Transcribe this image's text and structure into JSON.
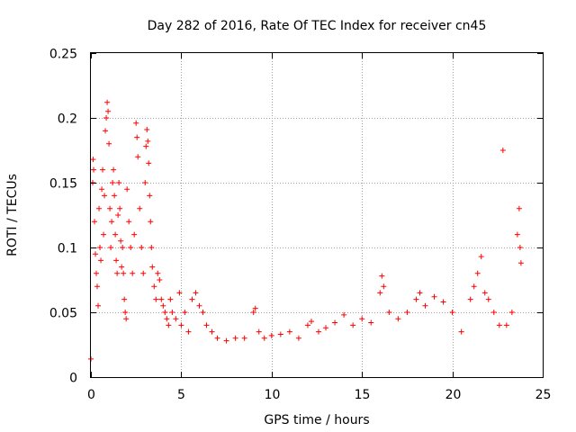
{
  "chart_data": {
    "type": "scatter",
    "title": "Day 282 of 2016, Rate Of TEC Index for receiver cn45",
    "xlabel": "GPS time / hours",
    "ylabel": "ROTI / TECUs",
    "xlim": [
      0,
      25
    ],
    "ylim": [
      0,
      0.25
    ],
    "xticks": [
      0,
      5,
      10,
      15,
      20,
      25
    ],
    "yticks": [
      0,
      0.05,
      0.1,
      0.15,
      0.2,
      0.25
    ],
    "xtick_labels": [
      "0",
      "5",
      "10",
      "15",
      "20",
      "25"
    ],
    "ytick_labels": [
      "0",
      "0.05",
      "0.1",
      "0.15",
      "0.2",
      "0.25"
    ],
    "grid": true,
    "marker": "+",
    "color": "#ff0000",
    "series": [
      {
        "name": "ROTI",
        "points": [
          [
            0.0,
            0.014
          ],
          [
            0.1,
            0.15
          ],
          [
            0.12,
            0.168
          ],
          [
            0.15,
            0.16
          ],
          [
            0.2,
            0.12
          ],
          [
            0.25,
            0.095
          ],
          [
            0.3,
            0.08
          ],
          [
            0.35,
            0.07
          ],
          [
            0.4,
            0.055
          ],
          [
            0.45,
            0.13
          ],
          [
            0.5,
            0.1
          ],
          [
            0.55,
            0.09
          ],
          [
            0.6,
            0.145
          ],
          [
            0.65,
            0.16
          ],
          [
            0.7,
            0.11
          ],
          [
            0.75,
            0.14
          ],
          [
            0.8,
            0.19
          ],
          [
            0.85,
            0.2
          ],
          [
            0.9,
            0.212
          ],
          [
            0.95,
            0.205
          ],
          [
            1.0,
            0.18
          ],
          [
            1.05,
            0.13
          ],
          [
            1.1,
            0.1
          ],
          [
            1.15,
            0.12
          ],
          [
            1.2,
            0.15
          ],
          [
            1.25,
            0.16
          ],
          [
            1.3,
            0.14
          ],
          [
            1.35,
            0.11
          ],
          [
            1.4,
            0.09
          ],
          [
            1.45,
            0.08
          ],
          [
            1.5,
            0.125
          ],
          [
            1.55,
            0.15
          ],
          [
            1.6,
            0.13
          ],
          [
            1.65,
            0.105
          ],
          [
            1.7,
            0.085
          ],
          [
            1.75,
            0.1
          ],
          [
            1.8,
            0.08
          ],
          [
            1.85,
            0.06
          ],
          [
            1.9,
            0.05
          ],
          [
            1.95,
            0.045
          ],
          [
            2.0,
            0.145
          ],
          [
            2.1,
            0.12
          ],
          [
            2.2,
            0.1
          ],
          [
            2.3,
            0.08
          ],
          [
            2.4,
            0.11
          ],
          [
            2.5,
            0.196
          ],
          [
            2.55,
            0.185
          ],
          [
            2.6,
            0.17
          ],
          [
            2.7,
            0.13
          ],
          [
            2.8,
            0.1
          ],
          [
            2.9,
            0.08
          ],
          [
            3.0,
            0.15
          ],
          [
            3.05,
            0.178
          ],
          [
            3.1,
            0.191
          ],
          [
            3.15,
            0.182
          ],
          [
            3.2,
            0.165
          ],
          [
            3.25,
            0.14
          ],
          [
            3.3,
            0.12
          ],
          [
            3.35,
            0.1
          ],
          [
            3.4,
            0.085
          ],
          [
            3.5,
            0.07
          ],
          [
            3.6,
            0.06
          ],
          [
            3.7,
            0.08
          ],
          [
            3.8,
            0.075
          ],
          [
            3.9,
            0.06
          ],
          [
            4.0,
            0.055
          ],
          [
            4.1,
            0.05
          ],
          [
            4.2,
            0.045
          ],
          [
            4.3,
            0.04
          ],
          [
            4.4,
            0.06
          ],
          [
            4.5,
            0.05
          ],
          [
            4.7,
            0.045
          ],
          [
            4.9,
            0.065
          ],
          [
            5.0,
            0.04
          ],
          [
            5.2,
            0.05
          ],
          [
            5.4,
            0.035
          ],
          [
            5.6,
            0.06
          ],
          [
            5.8,
            0.065
          ],
          [
            6.0,
            0.055
          ],
          [
            6.2,
            0.05
          ],
          [
            6.4,
            0.04
          ],
          [
            6.7,
            0.035
          ],
          [
            7.0,
            0.03
          ],
          [
            7.5,
            0.028
          ],
          [
            8.0,
            0.03
          ],
          [
            8.5,
            0.03
          ],
          [
            9.0,
            0.05
          ],
          [
            9.1,
            0.053
          ],
          [
            9.3,
            0.035
          ],
          [
            9.6,
            0.03
          ],
          [
            10.0,
            0.032
          ],
          [
            10.5,
            0.033
          ],
          [
            11.0,
            0.035
          ],
          [
            11.5,
            0.03
          ],
          [
            12.0,
            0.04
          ],
          [
            12.2,
            0.043
          ],
          [
            12.6,
            0.035
          ],
          [
            13.0,
            0.038
          ],
          [
            13.5,
            0.042
          ],
          [
            14.0,
            0.048
          ],
          [
            14.5,
            0.04
          ],
          [
            15.0,
            0.045
          ],
          [
            15.5,
            0.042
          ],
          [
            16.0,
            0.065
          ],
          [
            16.1,
            0.078
          ],
          [
            16.2,
            0.07
          ],
          [
            16.5,
            0.05
          ],
          [
            17.0,
            0.045
          ],
          [
            17.5,
            0.05
          ],
          [
            18.0,
            0.06
          ],
          [
            18.2,
            0.065
          ],
          [
            18.5,
            0.055
          ],
          [
            19.0,
            0.062
          ],
          [
            19.5,
            0.058
          ],
          [
            20.0,
            0.05
          ],
          [
            20.5,
            0.035
          ],
          [
            21.0,
            0.06
          ],
          [
            21.2,
            0.07
          ],
          [
            21.4,
            0.08
          ],
          [
            21.6,
            0.093
          ],
          [
            21.8,
            0.065
          ],
          [
            22.0,
            0.06
          ],
          [
            22.3,
            0.05
          ],
          [
            22.6,
            0.04
          ],
          [
            22.8,
            0.175
          ],
          [
            23.0,
            0.04
          ],
          [
            23.3,
            0.05
          ],
          [
            23.6,
            0.11
          ],
          [
            23.7,
            0.13
          ],
          [
            23.75,
            0.1
          ],
          [
            23.8,
            0.088
          ]
        ]
      }
    ]
  }
}
